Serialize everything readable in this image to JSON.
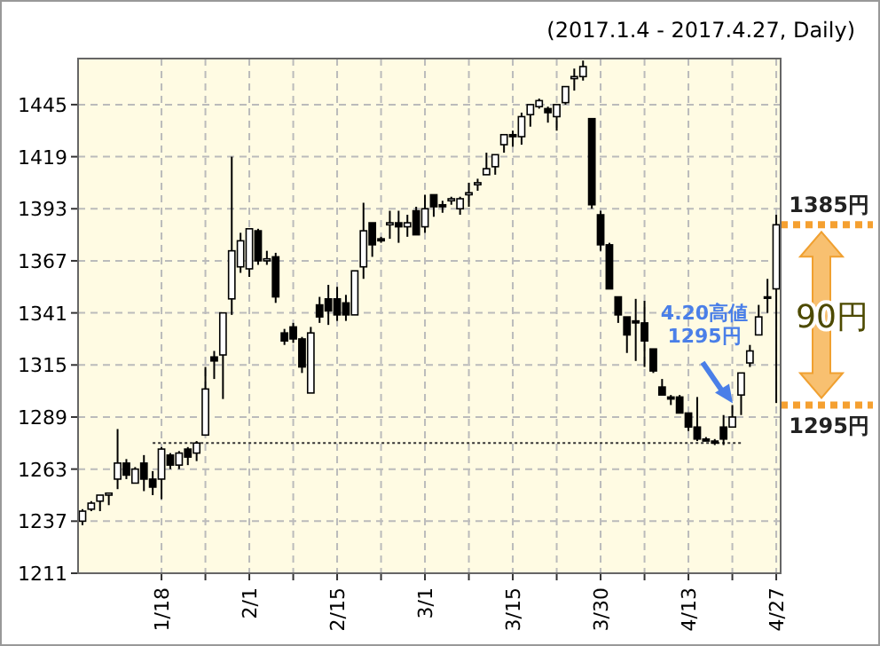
{
  "chart_data": {
    "type": "candlestick",
    "subtitle": "(2017.1.4 - 2017.4.27, Daily)",
    "categories": [
      null,
      null,
      null,
      null,
      null,
      null,
      null,
      null,
      null,
      "1/18",
      null,
      null,
      null,
      null,
      null,
      null,
      null,
      null,
      null,
      "2/1",
      null,
      null,
      null,
      null,
      null,
      null,
      null,
      null,
      null,
      "2/15",
      null,
      null,
      null,
      null,
      null,
      null,
      null,
      null,
      null,
      "3/1",
      null,
      null,
      null,
      null,
      null,
      null,
      null,
      null,
      null,
      "3/15",
      null,
      null,
      null,
      null,
      null,
      null,
      null,
      null,
      null,
      "3/30",
      null,
      null,
      null,
      null,
      null,
      null,
      null,
      null,
      null,
      "4/13",
      null,
      null,
      null,
      null,
      null,
      null,
      null,
      null,
      null,
      "4/27"
    ],
    "ohlc": [
      [
        1237,
        1243,
        1235,
        1242
      ],
      [
        1243,
        1247,
        1242,
        1246
      ],
      [
        1247,
        1250,
        1242,
        1250
      ],
      [
        1250,
        1251,
        1245,
        1251
      ],
      [
        1258,
        1283,
        1253,
        1266
      ],
      [
        1266,
        1268,
        1258,
        1260
      ],
      [
        1256,
        1264,
        1256,
        1263
      ],
      [
        1266,
        1270,
        1252,
        1258
      ],
      [
        1258,
        1262,
        1250,
        1254
      ],
      [
        1258,
        1274,
        1248,
        1273
      ],
      [
        1270,
        1271,
        1263,
        1265
      ],
      [
        1265,
        1272,
        1263,
        1271
      ],
      [
        1273,
        1274,
        1265,
        1269
      ],
      [
        1271,
        1277,
        1267,
        1276
      ],
      [
        1280,
        1314,
        1280,
        1303
      ],
      [
        1319,
        1322,
        1308,
        1317
      ],
      [
        1320,
        1341,
        1298,
        1341
      ],
      [
        1348,
        1419,
        1340,
        1372
      ],
      [
        1364,
        1381,
        1361,
        1377
      ],
      [
        1363,
        1383,
        1359,
        1383
      ],
      [
        1382,
        1383,
        1365,
        1367
      ],
      [
        1367,
        1372,
        1365,
        1368
      ],
      [
        1369,
        1371,
        1346,
        1349
      ],
      [
        1331,
        1333,
        1325,
        1327
      ],
      [
        1334,
        1336,
        1326,
        1328
      ],
      [
        1328,
        1329,
        1311,
        1314
      ],
      [
        1301,
        1334,
        1301,
        1331
      ],
      [
        1345,
        1349,
        1336,
        1339
      ],
      [
        1348,
        1355,
        1335,
        1342
      ],
      [
        1348,
        1354,
        1337,
        1340
      ],
      [
        1346,
        1350,
        1337,
        1340
      ],
      [
        1340,
        1362,
        1340,
        1362
      ],
      [
        1364,
        1396,
        1358,
        1382
      ],
      [
        1386,
        1386,
        1369,
        1375
      ],
      [
        1378,
        1379,
        1376,
        1377
      ],
      [
        1385,
        1392,
        1378,
        1386
      ],
      [
        1386,
        1392,
        1376,
        1384
      ],
      [
        1384,
        1390,
        1379,
        1386
      ],
      [
        1392,
        1394,
        1380,
        1380
      ],
      [
        1384,
        1400,
        1381,
        1393
      ],
      [
        1400,
        1400,
        1389,
        1394
      ],
      [
        1395,
        1397,
        1391,
        1394
      ],
      [
        1397,
        1399,
        1395,
        1398
      ],
      [
        1393,
        1399,
        1390,
        1398
      ],
      [
        1400,
        1406,
        1394,
        1401
      ],
      [
        1405,
        1408,
        1402,
        1406
      ],
      [
        1410,
        1421,
        1410,
        1413
      ],
      [
        1414,
        1420,
        1410,
        1420
      ],
      [
        1425,
        1430,
        1421,
        1430
      ],
      [
        1430,
        1432,
        1424,
        1429
      ],
      [
        1429,
        1441,
        1425,
        1439
      ],
      [
        1440,
        1445,
        1434,
        1445
      ],
      [
        1444,
        1448,
        1443,
        1447
      ],
      [
        1443,
        1444,
        1436,
        1441
      ],
      [
        1439,
        1445,
        1432,
        1445
      ],
      [
        1446,
        1454,
        1445,
        1454
      ],
      [
        1458,
        1463,
        1452,
        1459
      ],
      [
        1459,
        1467,
        1457,
        1464
      ],
      [
        1438,
        1438,
        1393,
        1395
      ],
      [
        1390,
        1392,
        1372,
        1375
      ],
      [
        1375,
        1376,
        1353,
        1353
      ],
      [
        1349,
        1349,
        1336,
        1340
      ],
      [
        1339,
        1339,
        1321,
        1330
      ],
      [
        1337,
        1348,
        1317,
        1336
      ],
      [
        1336,
        1347,
        1314,
        1327
      ],
      [
        1323,
        1323,
        1311,
        1312
      ],
      [
        1304,
        1308,
        1300,
        1300
      ],
      [
        1299,
        1300,
        1295,
        1298
      ],
      [
        1299,
        1300,
        1291,
        1291
      ],
      [
        1291,
        1291,
        1282,
        1284
      ],
      [
        1284,
        1299,
        1277,
        1278
      ],
      [
        1278,
        1279,
        1277,
        1277
      ],
      [
        1277,
        1278,
        1275,
        1276
      ],
      [
        1284,
        1290,
        1275,
        1278
      ],
      [
        1284,
        1295,
        1284,
        1289
      ],
      [
        1300,
        1311,
        1290,
        1311
      ],
      [
        1316,
        1325,
        1314,
        1322
      ],
      [
        1330,
        1345,
        1330,
        1339
      ],
      [
        1349,
        1358,
        1341,
        1349
      ],
      [
        1353,
        1390,
        1296,
        1385
      ]
    ],
    "series": [
      {
        "type": "line",
        "color": "#333333",
        "line_style": "dotted",
        "values": [
          null,
          null,
          null,
          null,
          null,
          null,
          null,
          null,
          1276,
          1276,
          1276,
          1276,
          1276,
          1276,
          1276,
          1276,
          1276,
          1276,
          1276,
          1276,
          1276,
          1276,
          1276,
          1276,
          1276,
          1276,
          1276,
          1276,
          1276,
          1276,
          1276,
          1276,
          1276,
          1276,
          1276,
          1276,
          1276,
          1276,
          1276,
          1276,
          1276,
          1276,
          1276,
          1276,
          1276,
          1276,
          1276,
          1276,
          1276,
          1276,
          1276,
          1276,
          1276,
          1276,
          1276,
          1276,
          1276,
          1276,
          1276,
          1276,
          1276,
          1276,
          1276,
          1276,
          1276,
          1276,
          1276,
          1276,
          1276,
          1276,
          1276,
          1276,
          1276,
          1276,
          1276,
          1276,
          null,
          null,
          null,
          null
        ]
      }
    ],
    "ylim": [
      1211,
      1468
    ],
    "yticks": [
      1211,
      1237,
      1263,
      1289,
      1315,
      1341,
      1367,
      1393,
      1419,
      1445
    ],
    "grid": true,
    "ref_lines": [
      {
        "axis": "y",
        "value": 1385,
        "label": "1385円",
        "color": "#f5a030",
        "line_style": "dotted"
      },
      {
        "axis": "y",
        "value": 1295,
        "label": "1295円",
        "color": "#f5a030",
        "line_style": "dotted"
      }
    ],
    "annotations": [
      {
        "text": "4.20高値\n1295円",
        "y": 1295
      },
      "90円"
    ]
  }
}
